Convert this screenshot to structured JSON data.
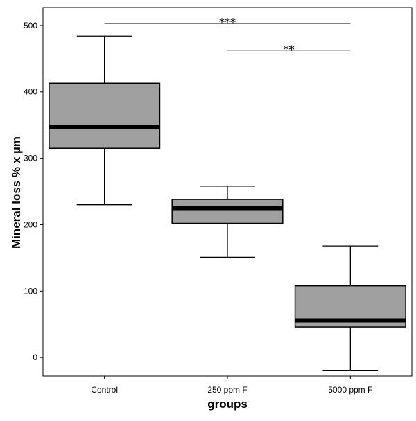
{
  "chart_data": {
    "type": "box",
    "xlabel": "groups",
    "ylabel": "Mineral loss % x µm",
    "ylim": [
      -28,
      527
    ],
    "yticks": [
      0,
      100,
      200,
      300,
      400,
      500
    ],
    "categories": [
      "Control",
      "250 ppm F",
      "5000 ppm F"
    ],
    "boxes": [
      {
        "name": "Control",
        "min": 230,
        "q1": 315,
        "median": 347,
        "q3": 413,
        "max": 484
      },
      {
        "name": "250 ppm F",
        "min": 151,
        "q1": 202,
        "median": 225,
        "q3": 238,
        "max": 258
      },
      {
        "name": "5000 ppm F",
        "min": -20,
        "q1": 46,
        "median": 56,
        "q3": 108,
        "max": 168
      }
    ],
    "significance": [
      {
        "from": 0,
        "to": 2,
        "y": 503,
        "label": "***"
      },
      {
        "from": 1,
        "to": 2,
        "y": 462,
        "label": "**"
      }
    ],
    "box_fill": "#a0a0a0",
    "grid": false,
    "legend": "none"
  }
}
